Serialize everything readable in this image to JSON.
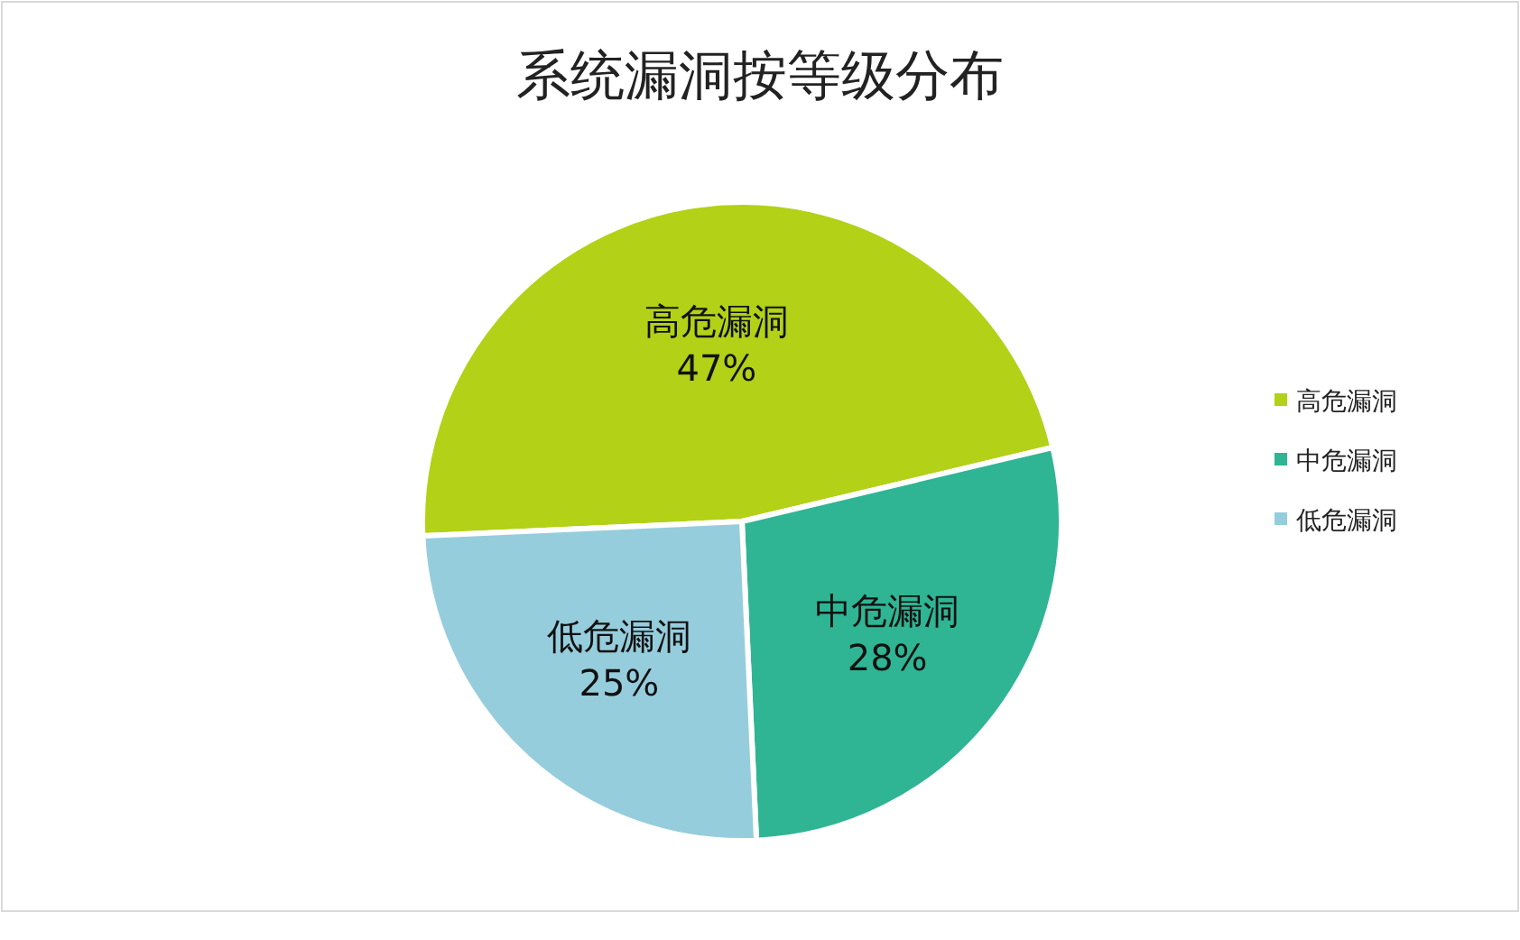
{
  "chart_data": {
    "type": "pie",
    "title": "系统漏洞按等级分布",
    "categories": [
      "高危漏洞",
      "中危漏洞",
      "低危漏洞"
    ],
    "values": [
      47,
      28,
      25
    ],
    "colors": [
      "#b3d116",
      "#2fb593",
      "#96cddc"
    ],
    "value_labels": [
      "47%",
      "28%",
      "25%"
    ],
    "legend": "right"
  }
}
